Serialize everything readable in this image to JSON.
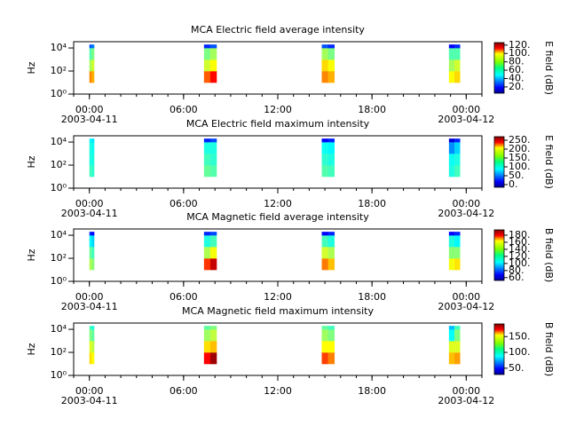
{
  "chart_data": [
    {
      "type": "spectrogram",
      "title": "MCA  Electric field average intensity",
      "ylabel": "Hz",
      "yscale": "log",
      "ylim": [
        1,
        35000
      ],
      "yticks": [
        {
          "value": 1,
          "label": "10⁰"
        },
        {
          "value": 100,
          "label": "10²"
        },
        {
          "value": 10000,
          "label": "10⁴"
        }
      ],
      "xlim": [
        -1,
        25
      ],
      "xticks": [
        {
          "value": 0,
          "label": "00:00"
        },
        {
          "value": 6,
          "label": "06:00"
        },
        {
          "value": 12,
          "label": "12:00"
        },
        {
          "value": 18,
          "label": "18:00"
        },
        {
          "value": 24,
          "label": "00:00"
        }
      ],
      "xdates": [
        {
          "value": 0,
          "label": "2003-04-11"
        },
        {
          "value": 24,
          "label": "2003-04-12"
        }
      ],
      "freq_edges": [
        10,
        100,
        1000,
        10000,
        20000
      ],
      "bursts": [
        {
          "t": [
            0,
            0.15,
            0.3
          ],
          "values": [
            [
              95,
              70,
              60,
              30
            ],
            [
              90,
              75,
              65,
              35
            ]
          ]
        },
        {
          "t": [
            7.3,
            7.7,
            8.1
          ],
          "values": [
            [
              100,
              75,
              65,
              25
            ],
            [
              110,
              80,
              70,
              30
            ]
          ]
        },
        {
          "t": [
            14.8,
            15.2,
            15.6
          ],
          "values": [
            [
              95,
              85,
              70,
              30
            ],
            [
              90,
              80,
              65,
              25
            ]
          ]
        },
        {
          "t": [
            22.9,
            23.25,
            23.6
          ],
          "values": [
            [
              80,
              70,
              60,
              20
            ],
            [
              85,
              75,
              60,
              25
            ]
          ]
        }
      ],
      "clabel": "E field (dB)",
      "clim": [
        5,
        126
      ],
      "cticks": [
        {
          "value": 20,
          "label": "20."
        },
        {
          "value": 40,
          "label": "40."
        },
        {
          "value": 60,
          "label": "60."
        },
        {
          "value": 80,
          "label": "80."
        },
        {
          "value": 100,
          "label": "100."
        },
        {
          "value": 120,
          "label": "120."
        }
      ]
    },
    {
      "type": "spectrogram",
      "title": "MCA  Electric field maximum intensity",
      "ylabel": "Hz",
      "yscale": "log",
      "ylim": [
        1,
        35000
      ],
      "yticks": [
        {
          "value": 1,
          "label": "10⁰"
        },
        {
          "value": 100,
          "label": "10²"
        },
        {
          "value": 10000,
          "label": "10⁴"
        }
      ],
      "xlim": [
        -1,
        25
      ],
      "xticks": [
        {
          "value": 0,
          "label": "00:00"
        },
        {
          "value": 6,
          "label": "06:00"
        },
        {
          "value": 12,
          "label": "12:00"
        },
        {
          "value": 18,
          "label": "18:00"
        },
        {
          "value": 24,
          "label": "00:00"
        }
      ],
      "xdates": [
        {
          "value": 0,
          "label": "2003-04-11"
        },
        {
          "value": 24,
          "label": "2003-04-12"
        }
      ],
      "freq_edges": [
        10,
        100,
        1000,
        10000,
        20000
      ],
      "bursts": [
        {
          "t": [
            0,
            0.15,
            0.3
          ],
          "values": [
            [
              110,
              100,
              100,
              90
            ],
            [
              105,
              100,
              95,
              85
            ]
          ]
        },
        {
          "t": [
            7.3,
            7.7,
            8.1
          ],
          "values": [
            [
              120,
              110,
              100,
              30
            ],
            [
              115,
              105,
              100,
              40
            ]
          ]
        },
        {
          "t": [
            14.8,
            15.2,
            15.6
          ],
          "values": [
            [
              115,
              105,
              95,
              20
            ],
            [
              110,
              100,
              90,
              30
            ]
          ]
        },
        {
          "t": [
            22.9,
            23.25,
            23.6
          ],
          "values": [
            [
              100,
              95,
              60,
              10
            ],
            [
              110,
              100,
              80,
              30
            ]
          ]
        }
      ],
      "clabel": "E field (dB)",
      "clim": [
        -15,
        270
      ],
      "cticks": [
        {
          "value": 0,
          "label": "0."
        },
        {
          "value": 50,
          "label": "50."
        },
        {
          "value": 100,
          "label": "100."
        },
        {
          "value": 150,
          "label": "150."
        },
        {
          "value": 200,
          "label": "200."
        },
        {
          "value": 250,
          "label": "250."
        }
      ]
    },
    {
      "type": "spectrogram",
      "title": "MCA  Magnetic field average intensity",
      "ylabel": "Hz",
      "yscale": "log",
      "ylim": [
        1,
        35000
      ],
      "yticks": [
        {
          "value": 1,
          "label": "10⁰"
        },
        {
          "value": 100,
          "label": "10²"
        },
        {
          "value": 10000,
          "label": "10⁴"
        }
      ],
      "xlim": [
        -1,
        25
      ],
      "xticks": [
        {
          "value": 0,
          "label": "00:00"
        },
        {
          "value": 6,
          "label": "06:00"
        },
        {
          "value": 12,
          "label": "12:00"
        },
        {
          "value": 18,
          "label": "18:00"
        },
        {
          "value": 24,
          "label": "00:00"
        }
      ],
      "xdates": [
        {
          "value": 0,
          "label": "2003-04-11"
        },
        {
          "value": 24,
          "label": "2003-04-12"
        }
      ],
      "freq_edges": [
        10,
        100,
        1000,
        10000,
        20000
      ],
      "bursts": [
        {
          "t": [
            0,
            0.15,
            0.3
          ],
          "values": [
            [
              130,
              120,
              105,
              75
            ],
            [
              125,
              115,
              100,
              70
            ]
          ]
        },
        {
          "t": [
            7.3,
            7.7,
            8.1
          ],
          "values": [
            [
              170,
              130,
              110,
              75
            ],
            [
              185,
              140,
              115,
              80
            ]
          ]
        },
        {
          "t": [
            14.8,
            15.2,
            15.6
          ],
          "values": [
            [
              160,
              135,
              115,
              70
            ],
            [
              150,
              130,
              110,
              75
            ]
          ]
        },
        {
          "t": [
            22.9,
            23.25,
            23.6
          ],
          "values": [
            [
              140,
              125,
              110,
              70
            ],
            [
              145,
              125,
              105,
              75
            ]
          ]
        }
      ],
      "clabel": "B field (dB)",
      "clim": [
        52,
        195
      ],
      "cticks": [
        {
          "value": 60,
          "label": "60."
        },
        {
          "value": 80,
          "label": "80."
        },
        {
          "value": 100,
          "label": "100."
        },
        {
          "value": 120,
          "label": "120."
        },
        {
          "value": 140,
          "label": "140."
        },
        {
          "value": 160,
          "label": "160."
        },
        {
          "value": 180,
          "label": "180."
        }
      ]
    },
    {
      "type": "spectrogram",
      "title": "MCA  Magnetic field maximum intensity",
      "ylabel": "Hz",
      "yscale": "log",
      "ylim": [
        1,
        35000
      ],
      "yticks": [
        {
          "value": 1,
          "label": "10⁰"
        },
        {
          "value": 100,
          "label": "10²"
        },
        {
          "value": 10000,
          "label": "10⁴"
        }
      ],
      "xlim": [
        -1,
        25
      ],
      "xticks": [
        {
          "value": 0,
          "label": "00:00"
        },
        {
          "value": 6,
          "label": "06:00"
        },
        {
          "value": 12,
          "label": "12:00"
        },
        {
          "value": 18,
          "label": "18:00"
        },
        {
          "value": 24,
          "label": "00:00"
        }
      ],
      "xdates": [
        {
          "value": 0,
          "label": "2003-04-11"
        },
        {
          "value": 24,
          "label": "2003-04-12"
        }
      ],
      "freq_edges": [
        10,
        100,
        1000,
        10000,
        20000
      ],
      "bursts": [
        {
          "t": [
            0,
            0.15,
            0.3
          ],
          "values": [
            [
              135,
              125,
              110,
              100
            ],
            [
              130,
              120,
              105,
              95
            ]
          ]
        },
        {
          "t": [
            7.3,
            7.7,
            8.1
          ],
          "values": [
            [
              170,
              135,
              115,
              105
            ],
            [
              185,
              140,
              120,
              110
            ]
          ]
        },
        {
          "t": [
            14.8,
            15.2,
            15.6
          ],
          "values": [
            [
              160,
              130,
              115,
              105
            ],
            [
              150,
              130,
              110,
              100
            ]
          ]
        },
        {
          "t": [
            22.9,
            23.25,
            23.6
          ],
          "values": [
            [
              140,
              125,
              90,
              80
            ],
            [
              145,
              125,
              110,
              100
            ]
          ]
        }
      ],
      "clabel": "B field (dB)",
      "clim": [
        30,
        190
      ],
      "cticks": [
        {
          "value": 50,
          "label": "50."
        },
        {
          "value": 100,
          "label": "100."
        },
        {
          "value": 150,
          "label": "150."
        }
      ]
    }
  ]
}
